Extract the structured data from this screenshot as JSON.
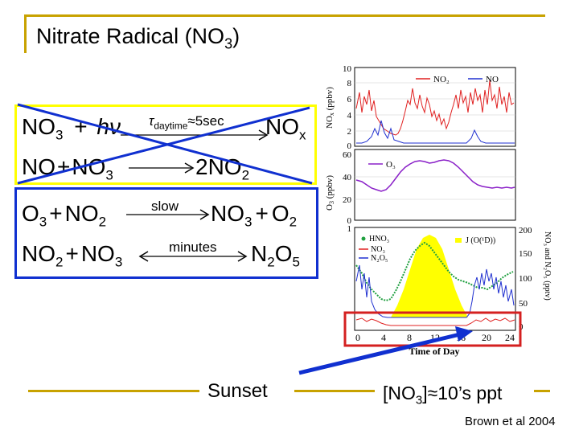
{
  "slide": {
    "title_main": "Nitrate Radical (NO",
    "title_sub": "3",
    "title_end": ")",
    "sunset_label": "Sunset",
    "concentration_pre": "[NO",
    "concentration_sub": "3",
    "concentration_post": "]≈10’s ppt",
    "credit": "Brown et al 2004",
    "colors": {
      "gold": "#c8a200",
      "blue": "#1030d0",
      "yellow": "#ffff00",
      "red": "#d42020"
    }
  },
  "equations": {
    "eq1": {
      "left": "NO",
      "left_sub": "3",
      "plus": "+",
      "hv": "hν",
      "tau": "τ",
      "tau_sub": "daytime",
      "approx": "≈5sec",
      "right": "NO",
      "right_sub": "x"
    },
    "eq2": {
      "a": "NO",
      "plus": "+",
      "b": "NO",
      "b_sub": "3",
      "right": "2NO",
      "right_sub": "2"
    },
    "eq3": {
      "a": "O",
      "a_sub": "3",
      "plus": "+",
      "b": "NO",
      "b_sub": "2",
      "label": "slow",
      "c": "NO",
      "c_sub": "3",
      "plus2": "+",
      "d": "O",
      "d_sub": "2"
    },
    "eq4": {
      "a": "NO",
      "a_sub": "2",
      "plus": "+",
      "b": "NO",
      "b_sub": "3",
      "label": "minutes",
      "c": "N",
      "c_sub": "2",
      "d": "O",
      "d_sub": "5"
    }
  },
  "figure": {
    "panel1": {
      "ylabel": "NO",
      "ylabel_sub": "x",
      "ylabel_unit": " (ppbv)",
      "yticks": [
        "10",
        "8",
        "6",
        "4",
        "2",
        "0"
      ],
      "legend": [
        "NO₂",
        "NO"
      ]
    },
    "panel2": {
      "ylabel": "O",
      "ylabel_sub": "3",
      "ylabel_unit": " (ppbv)",
      "yticks": [
        "60",
        "40",
        "20",
        "0"
      ],
      "legend": [
        "O₃"
      ]
    },
    "panel3": {
      "yticks_left": [
        "1"
      ],
      "yticks_right": [
        "200",
        "150",
        "100",
        "50",
        "0"
      ],
      "ylabel_right": "NO₃ and N₂O₅ (pptv)",
      "legend": [
        "HNO₃",
        "NO₃",
        "N₂O₅",
        "J (O(¹D))"
      ]
    },
    "xticks": [
      "0",
      "4",
      "8",
      "12",
      "16",
      "20",
      "24"
    ],
    "xlabel": "Time of Day"
  }
}
